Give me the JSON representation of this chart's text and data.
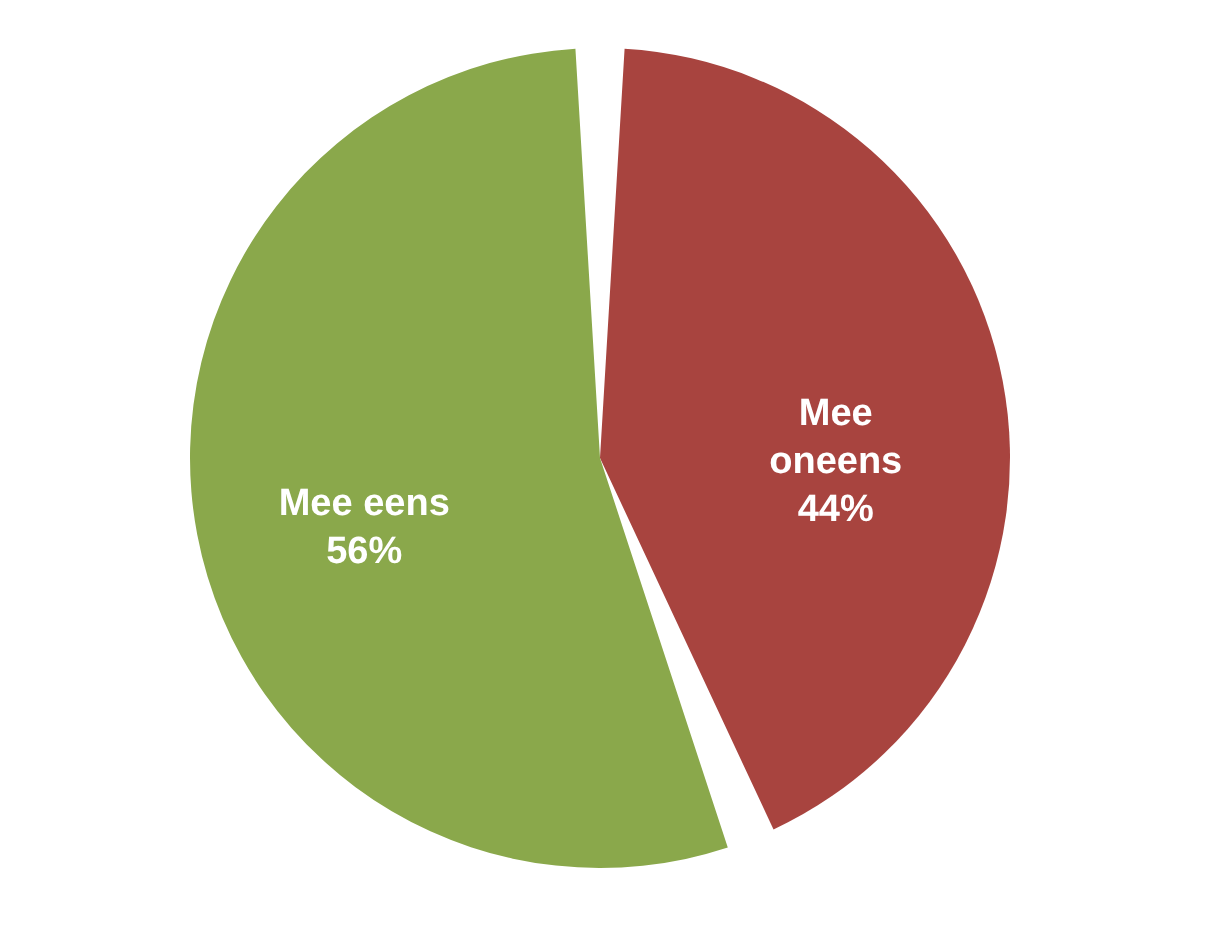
{
  "chart_data": {
    "type": "pie",
    "categories": [
      "Mee oneens",
      "Mee eens"
    ],
    "values": [
      44,
      56
    ],
    "colors": [
      "#a8443f",
      "#8aa84b"
    ],
    "value_labels": [
      "44%",
      "56%"
    ],
    "legend": false
  }
}
